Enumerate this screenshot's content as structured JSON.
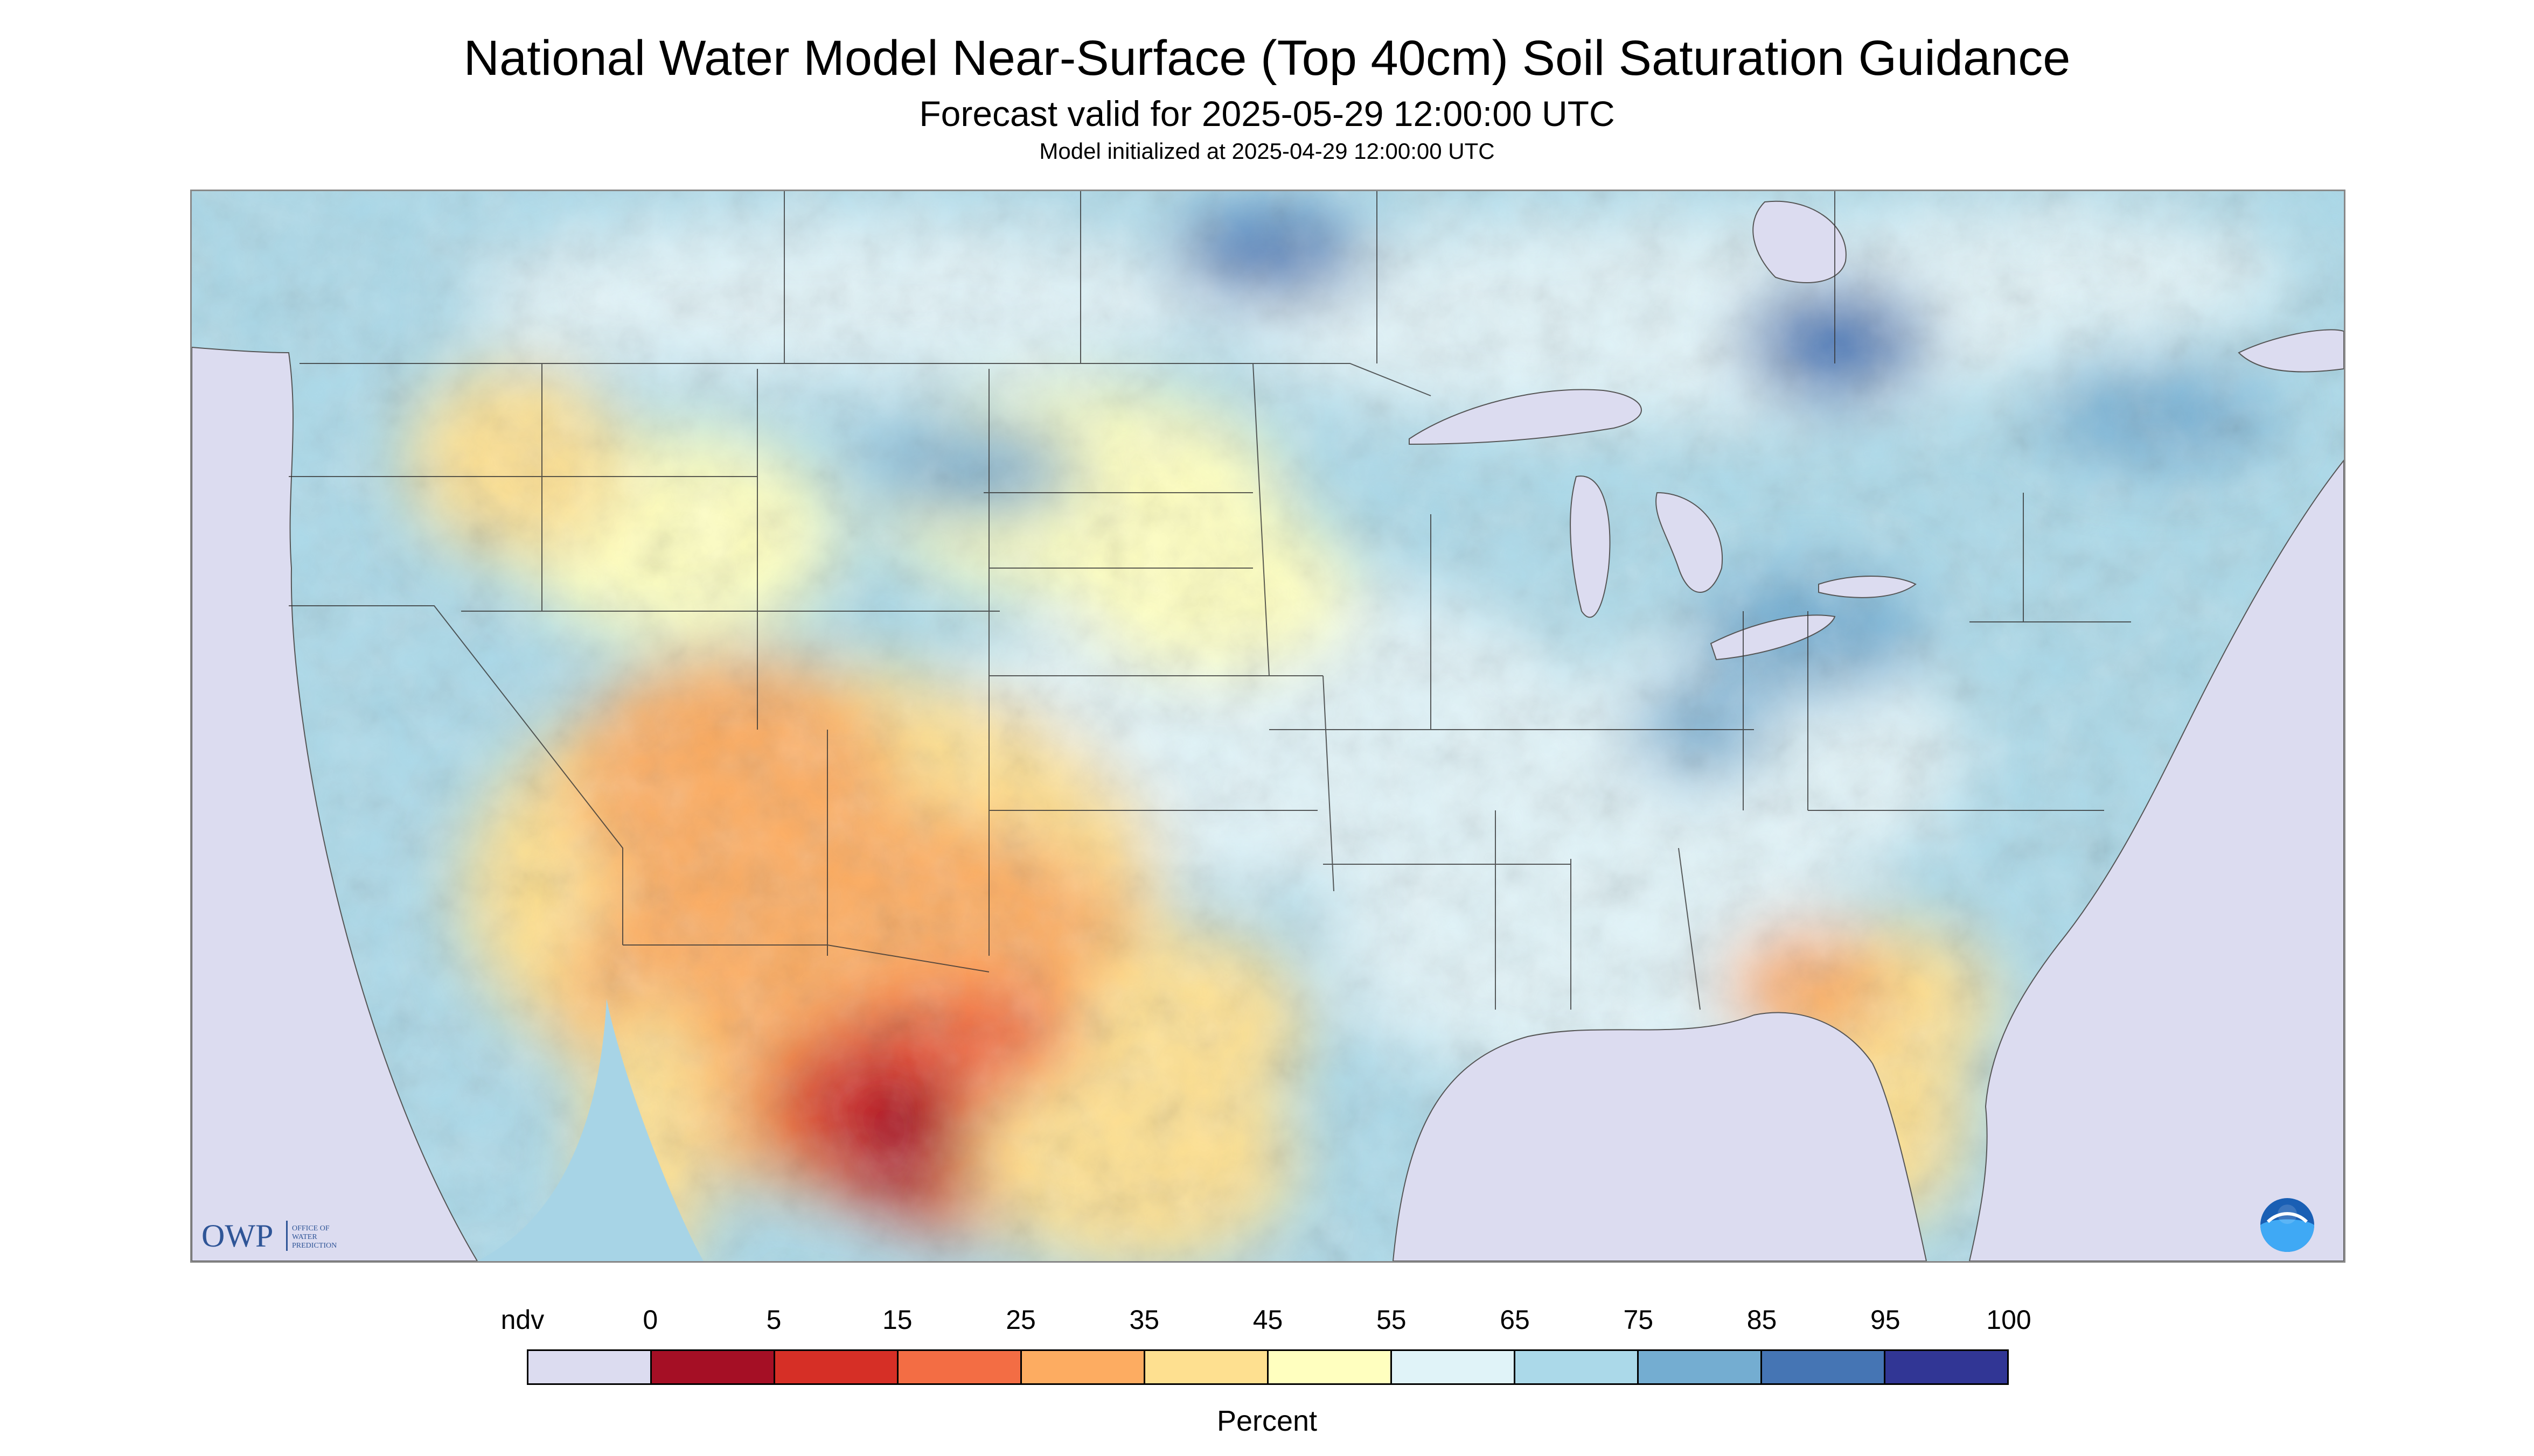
{
  "header": {
    "title": "National Water Model Near-Surface (Top 40cm) Soil Saturation Guidance",
    "valid": "Forecast valid for 2025-05-29 12:00:00 UTC",
    "initialized": "Model initialized at 2025-04-29 12:00:00 UTC"
  },
  "map": {
    "region": "CONUS",
    "logos": {
      "owp_mark": "OWP",
      "owp_text": [
        "OFFICE OF",
        "WATER",
        "PREDICTION"
      ],
      "noaa_icon": "noaa-logo-icon"
    }
  },
  "legend": {
    "label": "Percent",
    "ticks": [
      "ndv",
      "0",
      "5",
      "15",
      "25",
      "35",
      "45",
      "55",
      "65",
      "75",
      "85",
      "95",
      "100"
    ],
    "colors": [
      "#dcdcf0",
      "#a50f25",
      "#d62f26",
      "#f36d44",
      "#fdac61",
      "#fee090",
      "#ffffbf",
      "#e0f3f8",
      "#abd9e9",
      "#74add1",
      "#4575b4",
      "#313695"
    ]
  }
}
